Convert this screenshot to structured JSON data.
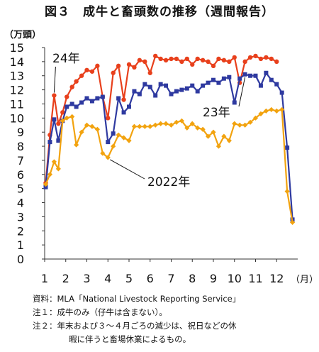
{
  "title": "図３　成牛と畜頭数の推移（週間報告）",
  "unit_label": "（万頭）",
  "notes": {
    "source": "資料：MLA「National Livestock Reporting Service」",
    "note1": "注１：成牛のみ（仔牛は含まない）。",
    "note2_line1": "注２：年末および３～４月ごろの減少は、祝日などの休",
    "note2_line2": "暇に伴うと畜場休業によるもの。"
  },
  "chart_data": {
    "type": "line",
    "title": "図３　成牛と畜頭数の推移（週間報告）",
    "ylabel": "（万頭）",
    "xlabel": "（月）",
    "ylim": [
      0,
      15
    ],
    "xlim": [
      1,
      13
    ],
    "yticks": [
      "0",
      "1",
      "2",
      "3",
      "4",
      "5",
      "6",
      "7",
      "8",
      "9",
      "10",
      "11",
      "12",
      "13",
      "14",
      "15"
    ],
    "xticks": [
      "1",
      "2",
      "3",
      "4",
      "5",
      "6",
      "7",
      "8",
      "9",
      "10",
      "11",
      "12"
    ],
    "x_unit": "（月）",
    "grid": false,
    "series": [
      {
        "name": "24年",
        "color": "#e8401c",
        "marker": "circle",
        "x": [
          1.05,
          1.25,
          1.45,
          1.65,
          1.85,
          2.05,
          2.3,
          2.5,
          2.75,
          3.0,
          3.25,
          3.5,
          3.75,
          4.0,
          4.25,
          4.5,
          4.75,
          5.0,
          5.25,
          5.5,
          5.75,
          6.0,
          6.25,
          6.5,
          6.75,
          7.0,
          7.25,
          7.5,
          7.75,
          8.0,
          8.25,
          8.5,
          8.75,
          9.0,
          9.25,
          9.5,
          9.75,
          10.0,
          10.25,
          10.5,
          10.75,
          11.0,
          11.25,
          11.5,
          11.75,
          12.0
        ],
        "y": [
          5.4,
          8.8,
          11.6,
          9.6,
          10.4,
          11.5,
          12.2,
          12.6,
          13.0,
          13.4,
          13.3,
          13.7,
          11.5,
          10.0,
          13.2,
          13.7,
          11.3,
          13.8,
          13.6,
          14.1,
          14.0,
          13.2,
          14.4,
          14.2,
          14.1,
          14.2,
          14.2,
          14.0,
          14.2,
          13.8,
          14.2,
          14.1,
          14.0,
          13.7,
          14.2,
          14.1,
          14.0,
          14.3,
          12.5,
          14.0,
          14.3,
          14.4,
          14.2,
          14.3,
          14.2,
          14.0
        ]
      },
      {
        "name": "23年",
        "color": "#2f3aa0",
        "marker": "square",
        "x": [
          1.05,
          1.25,
          1.45,
          1.65,
          1.85,
          2.05,
          2.3,
          2.5,
          2.75,
          3.0,
          3.25,
          3.5,
          3.75,
          4.0,
          4.25,
          4.5,
          4.75,
          5.0,
          5.25,
          5.5,
          5.75,
          6.0,
          6.25,
          6.5,
          6.75,
          7.0,
          7.25,
          7.5,
          7.75,
          8.0,
          8.25,
          8.5,
          8.75,
          9.0,
          9.25,
          9.5,
          9.75,
          10.0,
          10.25,
          10.5,
          10.75,
          11.0,
          11.25,
          11.5,
          11.75,
          12.0,
          12.25,
          12.5,
          12.75
        ],
        "y": [
          5.1,
          8.3,
          9.9,
          8.4,
          9.8,
          10.8,
          11.0,
          10.8,
          11.1,
          11.4,
          11.2,
          11.4,
          11.5,
          8.3,
          8.9,
          11.4,
          10.4,
          10.8,
          11.9,
          11.7,
          12.4,
          12.2,
          11.6,
          12.4,
          12.3,
          11.7,
          11.9,
          12.0,
          12.1,
          12.3,
          11.9,
          12.3,
          12.5,
          12.7,
          12.5,
          12.8,
          12.9,
          11.1,
          12.8,
          13.1,
          13.0,
          13.0,
          12.3,
          13.2,
          12.7,
          12.4,
          11.8,
          7.9,
          2.8
        ]
      },
      {
        "name": "2022年",
        "color": "#f2a30f",
        "marker": "diamond",
        "x": [
          1.05,
          1.25,
          1.45,
          1.65,
          1.85,
          2.05,
          2.3,
          2.5,
          2.75,
          3.0,
          3.25,
          3.5,
          3.75,
          4.0,
          4.25,
          4.5,
          4.75,
          5.0,
          5.25,
          5.5,
          5.75,
          6.0,
          6.25,
          6.5,
          6.75,
          7.0,
          7.25,
          7.5,
          7.75,
          8.0,
          8.25,
          8.5,
          8.75,
          9.0,
          9.25,
          9.5,
          9.75,
          10.0,
          10.25,
          10.5,
          10.75,
          11.0,
          11.25,
          11.5,
          11.75,
          12.0,
          12.25,
          12.5,
          12.75
        ],
        "y": [
          5.3,
          6.0,
          6.9,
          6.4,
          9.8,
          10.0,
          10.1,
          8.1,
          9.0,
          9.5,
          9.4,
          9.2,
          7.5,
          7.2,
          8.0,
          8.8,
          8.6,
          8.4,
          9.4,
          9.4,
          9.4,
          9.4,
          9.5,
          9.6,
          9.6,
          9.5,
          9.7,
          9.8,
          9.3,
          9.6,
          9.3,
          9.2,
          8.7,
          9.0,
          8.0,
          8.7,
          8.4,
          9.6,
          9.5,
          9.5,
          9.7,
          10.0,
          10.3,
          10.5,
          10.6,
          10.5,
          10.6,
          4.8,
          2.6
        ]
      }
    ],
    "annotations": [
      {
        "text": "24年",
        "series": "24年"
      },
      {
        "text": "23年",
        "series": "23年"
      },
      {
        "text": "2022年",
        "series": "2022年"
      }
    ]
  }
}
